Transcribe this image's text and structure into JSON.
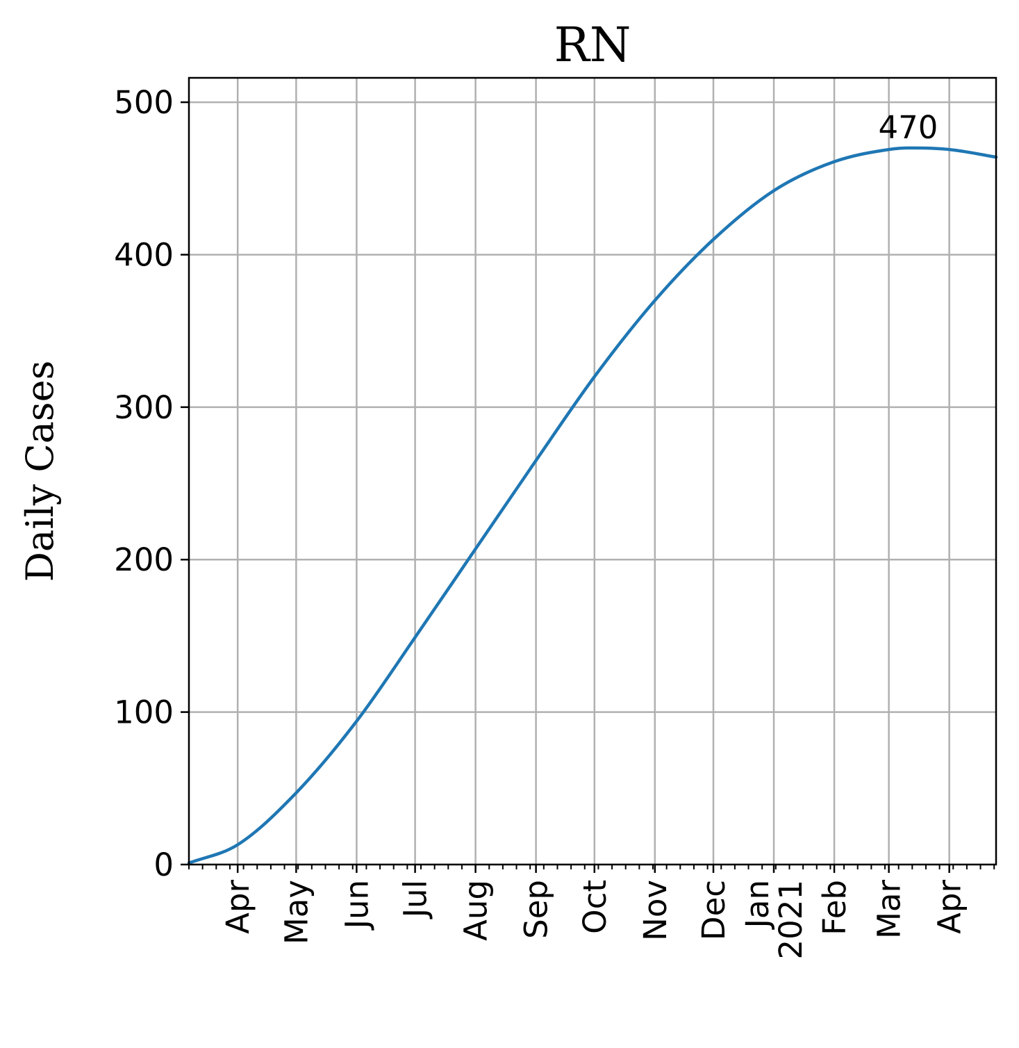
{
  "chart_data": {
    "type": "line",
    "title": "RN",
    "xlabel": "",
    "ylabel": "Daily Cases",
    "ylim": [
      0,
      516
    ],
    "xlim": [
      "2020-03-07",
      "2021-04-25"
    ],
    "yticks": [
      0,
      100,
      200,
      300,
      400,
      500
    ],
    "xticks": [
      {
        "date": "2020-04-01",
        "label": "Apr"
      },
      {
        "date": "2020-05-01",
        "label": "May"
      },
      {
        "date": "2020-06-01",
        "label": "Jun"
      },
      {
        "date": "2020-07-01",
        "label": "Jul"
      },
      {
        "date": "2020-08-01",
        "label": "Aug"
      },
      {
        "date": "2020-09-01",
        "label": "Sep"
      },
      {
        "date": "2020-10-01",
        "label": "Oct"
      },
      {
        "date": "2020-11-01",
        "label": "Nov"
      },
      {
        "date": "2020-12-01",
        "label": "Dec"
      },
      {
        "date": "2021-01-01",
        "label": "Jan\n2021"
      },
      {
        "date": "2021-02-01",
        "label": "Feb"
      },
      {
        "date": "2021-03-01",
        "label": "Mar"
      },
      {
        "date": "2021-04-01",
        "label": "Apr"
      }
    ],
    "grid": true,
    "series": [
      {
        "name": "RN",
        "color": "#1f77b4",
        "x": [
          "2020-03-07",
          "2020-04-01",
          "2020-05-01",
          "2020-06-01",
          "2020-07-01",
          "2020-08-01",
          "2020-09-01",
          "2020-10-01",
          "2020-11-01",
          "2020-12-01",
          "2021-01-01",
          "2021-02-01",
          "2021-03-01",
          "2021-03-12",
          "2021-04-01",
          "2021-04-25"
        ],
        "y": [
          1,
          13,
          47,
          94,
          149,
          207,
          265,
          320,
          370,
          410,
          442,
          461,
          469,
          470,
          469,
          464
        ]
      }
    ],
    "annotations": [
      {
        "date": "2021-03-12",
        "value": 470,
        "text": "470"
      }
    ]
  }
}
